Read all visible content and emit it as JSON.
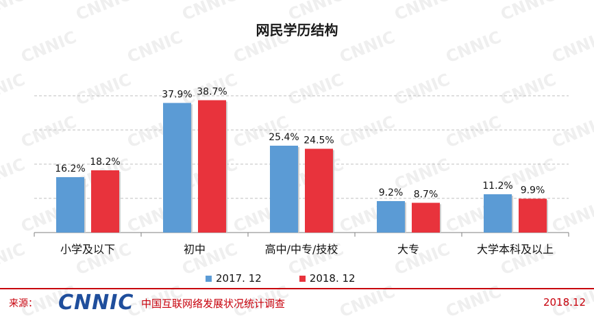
{
  "watermark": "CNNIC",
  "colors": {
    "series1": "#5b9bd5",
    "series2": "#e8333c",
    "brand": "#c7000b",
    "axis": "#7f7f7f",
    "grid": "#bfbfbf"
  },
  "chart_data": {
    "type": "bar",
    "title": "网民学历结构",
    "categories": [
      "小学及以下",
      "初中",
      "高中/中专/技校",
      "大专",
      "大学本科及以上"
    ],
    "series": [
      {
        "name": "2017. 12",
        "values": [
          16.2,
          37.9,
          25.4,
          9.2,
          11.2
        ],
        "labels": [
          "16.2%",
          "37.9%",
          "25.4%",
          "9.2%",
          "11.2%"
        ],
        "color": "#5b9bd5"
      },
      {
        "name": "2018. 12",
        "values": [
          18.2,
          38.7,
          24.5,
          8.7,
          9.9
        ],
        "labels": [
          "18.2%",
          "38.7%",
          "24.5%",
          "8.7%",
          "9.9%"
        ],
        "color": "#e8333c"
      }
    ],
    "ylim": [
      0,
      45
    ],
    "grid": true,
    "legend": "bottom"
  },
  "footer": {
    "source_label": "来源：",
    "logo_text": "CNNIC",
    "survey_name": "中国互联网络发展状况统计调查",
    "date": "2018.12"
  }
}
